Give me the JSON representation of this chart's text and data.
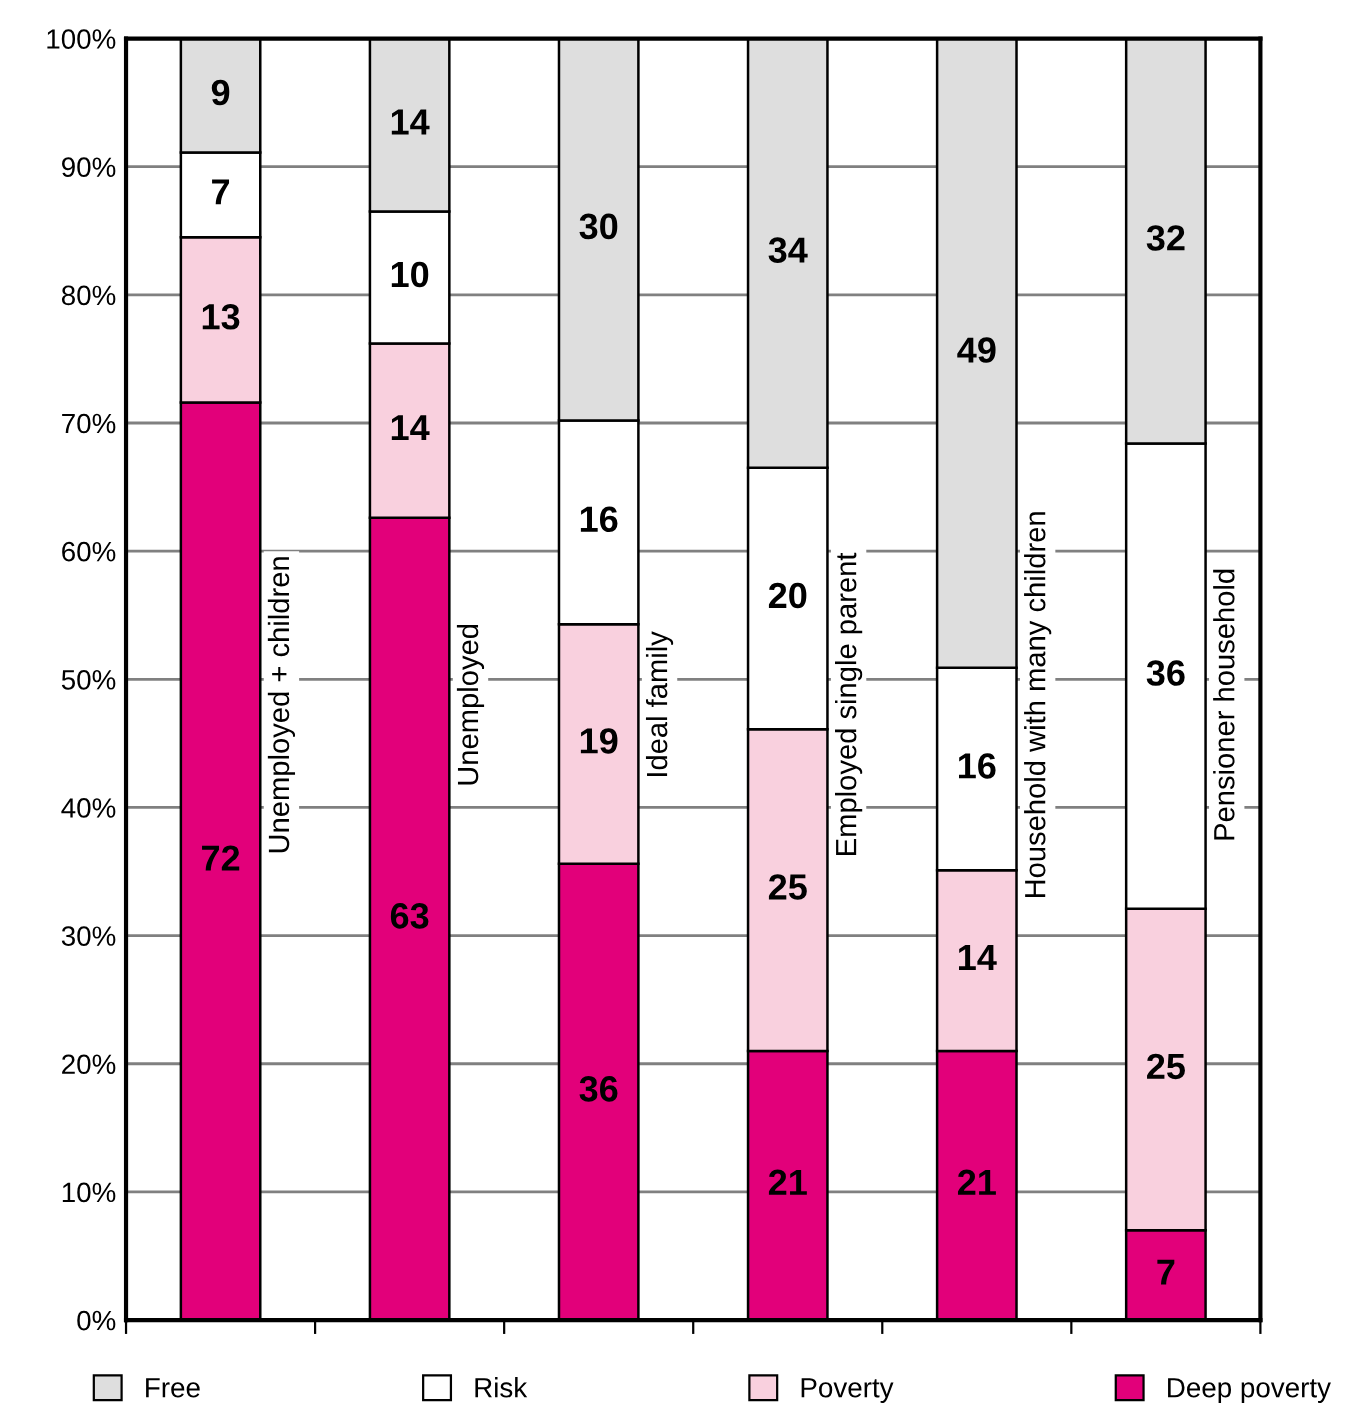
{
  "chart_data": {
    "type": "bar",
    "stacked": true,
    "categories": [
      "Unemployed + children",
      "Unemployed",
      "Ideal family",
      "Employed single parent",
      "Household with many children",
      "Pensioner household"
    ],
    "series": [
      {
        "name": "Deep poverty",
        "color": "#e2007a",
        "values": [
          71.6,
          62.6,
          35.6,
          21.0,
          21.0,
          7.0
        ],
        "value_labels": [
          "72",
          "63",
          "36",
          "21",
          "21",
          "7"
        ]
      },
      {
        "name": "Poverty",
        "color": "#f9d0de",
        "values": [
          12.9,
          13.6,
          18.7,
          25.1,
          14.1,
          25.1
        ],
        "value_labels": [
          "13",
          "14",
          "19",
          "25",
          "14",
          "25"
        ]
      },
      {
        "name": "Risk",
        "color": "#ffffff",
        "values": [
          6.6,
          10.3,
          15.9,
          20.4,
          15.8,
          36.3
        ],
        "value_labels": [
          "7",
          "10",
          "16",
          "20",
          "16",
          "36"
        ]
      },
      {
        "name": "Free",
        "color": "#dedede",
        "values": [
          8.9,
          13.5,
          29.8,
          33.5,
          49.1,
          31.6
        ],
        "value_labels": [
          "9",
          "14",
          "30",
          "34",
          "49",
          "32"
        ]
      }
    ],
    "ylim": [
      0,
      100
    ],
    "yticks": [
      {
        "value": 0,
        "label": "0%"
      },
      {
        "value": 10,
        "label": "10%"
      },
      {
        "value": 20,
        "label": "20%"
      },
      {
        "value": 30,
        "label": "30%"
      },
      {
        "value": 40,
        "label": "40%"
      },
      {
        "value": 50,
        "label": "50%"
      },
      {
        "value": 60,
        "label": "60%"
      },
      {
        "value": 70,
        "label": "70%"
      },
      {
        "value": 80,
        "label": "80%"
      },
      {
        "value": 90,
        "label": "90%"
      },
      {
        "value": 100,
        "label": "100%"
      }
    ],
    "grid": "y",
    "legend": "bottom"
  }
}
